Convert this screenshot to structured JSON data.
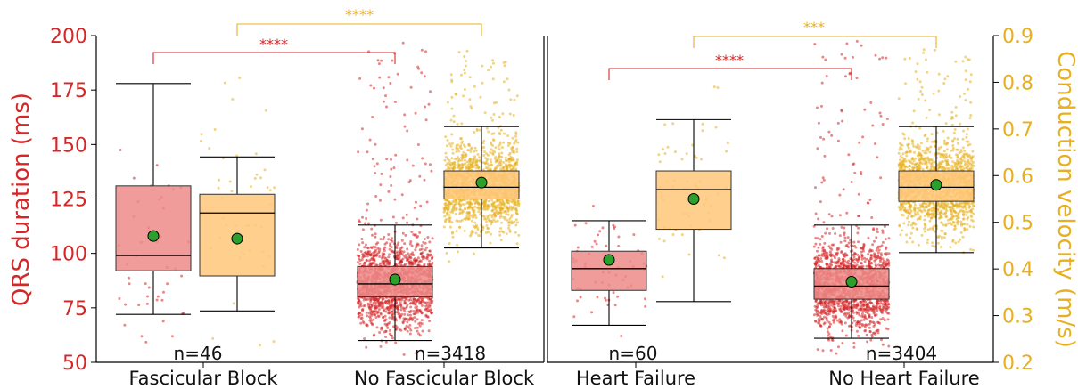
{
  "chart_data": {
    "type": "box",
    "colors": {
      "qrs": "#d62728",
      "qrs_box": "#ec8b88",
      "cv": "#e8b020",
      "cv_box": "#ffc77a",
      "mean_marker": "#2ca02c"
    },
    "left_axis": {
      "label": "QRS duration (ms)",
      "range": [
        50,
        200
      ],
      "ticks": [
        "50",
        "75",
        "100",
        "125",
        "150",
        "175",
        "200"
      ]
    },
    "right_axis": {
      "label": "Conduction velocity (m/s)",
      "range": [
        0.2,
        0.9
      ],
      "ticks": [
        "0.2",
        "0.3",
        "0.4",
        "0.5",
        "0.6",
        "0.7",
        "0.8",
        "0.9"
      ]
    },
    "panels": [
      {
        "categories": [
          {
            "label": "Fascicular Block",
            "n_label": "n=46",
            "qrs": {
              "whisker_low": 72,
              "q1": 92,
              "median": 99,
              "q3": 131,
              "whisker_high": 178,
              "mean": 108,
              "n_points": 46
            },
            "cv": {
              "whisker_low": 0.31,
              "q1": 0.385,
              "median": 0.52,
              "q3": 0.56,
              "whisker_high": 0.64,
              "mean": 0.465,
              "n_points": 46
            }
          },
          {
            "label": "No Fascicular Block",
            "n_label": "n=3418",
            "qrs": {
              "whisker_low": 60,
              "q1": 80,
              "median": 86,
              "q3": 94,
              "whisker_high": 113,
              "mean": 88,
              "n_points": 3418
            },
            "cv": {
              "whisker_low": 0.445,
              "q1": 0.55,
              "median": 0.575,
              "q3": 0.61,
              "whisker_high": 0.705,
              "mean": 0.585,
              "n_points": 3418
            }
          }
        ],
        "significance": [
          {
            "label": "****",
            "axis": "qrs"
          },
          {
            "label": "****",
            "axis": "cv"
          }
        ]
      },
      {
        "categories": [
          {
            "label": "Heart Failure",
            "n_label": "n=60",
            "qrs": {
              "whisker_low": 67,
              "q1": 83,
              "median": 93,
              "q3": 101,
              "whisker_high": 115,
              "mean": 97,
              "n_points": 60
            },
            "cv": {
              "whisker_low": 0.33,
              "q1": 0.485,
              "median": 0.57,
              "q3": 0.61,
              "whisker_high": 0.72,
              "mean": 0.55,
              "n_points": 60
            }
          },
          {
            "label": "No Heart Failure",
            "n_label": "n=3404",
            "qrs": {
              "whisker_low": 61,
              "q1": 79,
              "median": 85,
              "q3": 93,
              "whisker_high": 113,
              "mean": 87,
              "n_points": 3404
            },
            "cv": {
              "whisker_low": 0.435,
              "q1": 0.545,
              "median": 0.575,
              "q3": 0.61,
              "whisker_high": 0.705,
              "mean": 0.58,
              "n_points": 3404
            }
          }
        ],
        "significance": [
          {
            "label": "****",
            "axis": "qrs"
          },
          {
            "label": "***",
            "axis": "cv"
          }
        ]
      }
    ]
  }
}
